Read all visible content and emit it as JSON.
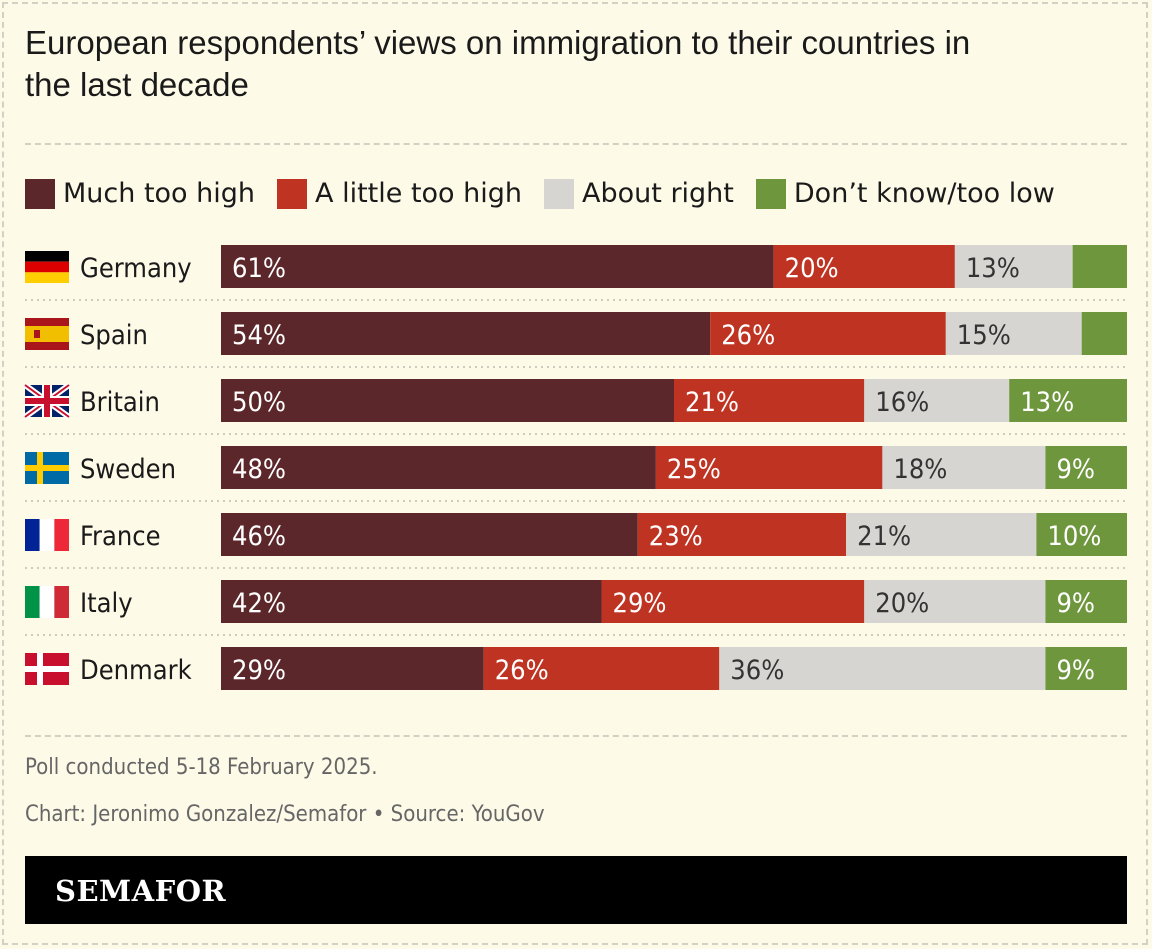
{
  "title": "European respondents’ views on immigration to their countries in the last decade",
  "chart_data": {
    "type": "bar",
    "orientation": "horizontal",
    "stacked": true,
    "xlim": [
      0,
      100
    ],
    "categories": [
      "Germany",
      "Spain",
      "Britain",
      "Sweden",
      "France",
      "Italy",
      "Denmark"
    ],
    "flags": [
      "germany-flag-icon",
      "spain-flag-icon",
      "britain-flag-icon",
      "sweden-flag-icon",
      "france-flag-icon",
      "italy-flag-icon",
      "denmark-flag-icon"
    ],
    "series": [
      {
        "name": "Much too high",
        "color": "#5c272b",
        "label_color": "#ffffff",
        "values": [
          61,
          54,
          50,
          48,
          46,
          42,
          29
        ]
      },
      {
        "name": "A little too high",
        "color": "#bf3322",
        "label_color": "#ffffff",
        "values": [
          20,
          26,
          21,
          25,
          23,
          29,
          26
        ]
      },
      {
        "name": "About right",
        "color": "#d6d5d2",
        "label_color": "#333333",
        "values": [
          13,
          15,
          16,
          18,
          21,
          20,
          36
        ]
      },
      {
        "name": "Don’t know/too low",
        "color": "#6e963c",
        "label_color": "#ffffff",
        "values": [
          6,
          5,
          13,
          9,
          10,
          9,
          9
        ]
      }
    ],
    "legend_position": "top-left",
    "grid": false
  },
  "notes": {
    "poll": "Poll conducted 5-18 February 2025.",
    "credit": "Chart: Jeronimo Gonzalez/Semafor • Source: YouGov"
  },
  "brand": "SEMAFOR"
}
